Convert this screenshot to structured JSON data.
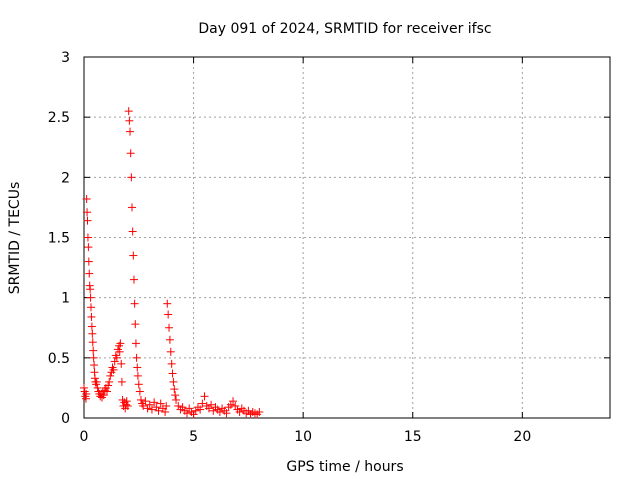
{
  "chart_data": {
    "type": "scatter",
    "title": "Day 091 of 2024, SRMTID for receiver ifsc",
    "xlabel": "GPS time / hours",
    "ylabel": "SRMTID / TECUs",
    "xlim": [
      0,
      24
    ],
    "ylim": [
      0,
      3
    ],
    "xticks": [
      0,
      5,
      10,
      15,
      20
    ],
    "yticks": [
      0,
      0.5,
      1,
      1.5,
      2,
      2.5,
      3
    ],
    "xtick_labels": [
      "0",
      "5",
      "10",
      "15",
      "20"
    ],
    "ytick_labels": [
      "0",
      "0.5",
      "1",
      "1.5",
      "2",
      "2.5",
      "3"
    ],
    "grid": true,
    "marker": "+",
    "color": "#ff0000",
    "series": [
      {
        "name": "SRMTID",
        "points": [
          [
            0.0,
            0.25
          ],
          [
            0.03,
            0.22
          ],
          [
            0.06,
            0.18
          ],
          [
            0.09,
            0.16
          ],
          [
            0.1,
            0.2
          ],
          [
            0.12,
            1.82
          ],
          [
            0.14,
            1.71
          ],
          [
            0.16,
            1.64
          ],
          [
            0.18,
            1.5
          ],
          [
            0.2,
            1.42
          ],
          [
            0.22,
            1.3
          ],
          [
            0.24,
            1.2
          ],
          [
            0.26,
            1.1
          ],
          [
            0.28,
            1.07
          ],
          [
            0.3,
            1.0
          ],
          [
            0.32,
            0.92
          ],
          [
            0.34,
            0.84
          ],
          [
            0.36,
            0.76
          ],
          [
            0.38,
            0.7
          ],
          [
            0.4,
            0.63
          ],
          [
            0.42,
            0.56
          ],
          [
            0.44,
            0.5
          ],
          [
            0.46,
            0.44
          ],
          [
            0.48,
            0.38
          ],
          [
            0.5,
            0.33
          ],
          [
            0.52,
            0.3
          ],
          [
            0.55,
            0.28
          ],
          [
            0.58,
            0.3
          ],
          [
            0.62,
            0.25
          ],
          [
            0.66,
            0.22
          ],
          [
            0.7,
            0.2
          ],
          [
            0.74,
            0.18
          ],
          [
            0.78,
            0.2
          ],
          [
            0.82,
            0.17
          ],
          [
            0.86,
            0.22
          ],
          [
            0.9,
            0.19
          ],
          [
            0.95,
            0.23
          ],
          [
            1.0,
            0.25
          ],
          [
            1.05,
            0.22
          ],
          [
            1.1,
            0.27
          ],
          [
            1.15,
            0.3
          ],
          [
            1.2,
            0.35
          ],
          [
            1.25,
            0.38
          ],
          [
            1.3,
            0.42
          ],
          [
            1.35,
            0.4
          ],
          [
            1.4,
            0.47
          ],
          [
            1.45,
            0.52
          ],
          [
            1.5,
            0.5
          ],
          [
            1.55,
            0.57
          ],
          [
            1.6,
            0.6
          ],
          [
            1.63,
            0.55
          ],
          [
            1.66,
            0.62
          ],
          [
            1.7,
            0.45
          ],
          [
            1.73,
            0.3
          ],
          [
            1.76,
            0.15
          ],
          [
            1.8,
            0.1
          ],
          [
            1.84,
            0.13
          ],
          [
            1.88,
            0.08
          ],
          [
            1.92,
            0.11
          ],
          [
            1.95,
            0.14
          ],
          [
            2.0,
            0.1
          ],
          [
            2.04,
            2.55
          ],
          [
            2.07,
            2.47
          ],
          [
            2.1,
            2.38
          ],
          [
            2.13,
            2.2
          ],
          [
            2.16,
            2.0
          ],
          [
            2.19,
            1.75
          ],
          [
            2.22,
            1.55
          ],
          [
            2.25,
            1.35
          ],
          [
            2.28,
            1.15
          ],
          [
            2.31,
            0.95
          ],
          [
            2.34,
            0.78
          ],
          [
            2.37,
            0.62
          ],
          [
            2.4,
            0.5
          ],
          [
            2.43,
            0.42
          ],
          [
            2.46,
            0.35
          ],
          [
            2.5,
            0.28
          ],
          [
            2.55,
            0.22
          ],
          [
            2.6,
            0.15
          ],
          [
            2.65,
            0.12
          ],
          [
            2.7,
            0.1
          ],
          [
            2.8,
            0.14
          ],
          [
            2.9,
            0.08
          ],
          [
            3.0,
            0.11
          ],
          [
            3.1,
            0.07
          ],
          [
            3.2,
            0.13
          ],
          [
            3.3,
            0.09
          ],
          [
            3.4,
            0.06
          ],
          [
            3.5,
            0.12
          ],
          [
            3.6,
            0.08
          ],
          [
            3.7,
            0.05
          ],
          [
            3.75,
            0.1
          ],
          [
            3.8,
            0.95
          ],
          [
            3.84,
            0.86
          ],
          [
            3.88,
            0.75
          ],
          [
            3.92,
            0.65
          ],
          [
            3.96,
            0.55
          ],
          [
            4.0,
            0.45
          ],
          [
            4.04,
            0.37
          ],
          [
            4.08,
            0.3
          ],
          [
            4.12,
            0.24
          ],
          [
            4.16,
            0.19
          ],
          [
            4.2,
            0.15
          ],
          [
            4.3,
            0.1
          ],
          [
            4.4,
            0.07
          ],
          [
            4.5,
            0.09
          ],
          [
            4.6,
            0.06
          ],
          [
            4.7,
            0.04
          ],
          [
            4.8,
            0.08
          ],
          [
            4.9,
            0.05
          ],
          [
            5.0,
            0.03
          ],
          [
            5.1,
            0.06
          ],
          [
            5.2,
            0.09
          ],
          [
            5.3,
            0.07
          ],
          [
            5.4,
            0.12
          ],
          [
            5.5,
            0.18
          ],
          [
            5.6,
            0.1
          ],
          [
            5.7,
            0.08
          ],
          [
            5.8,
            0.11
          ],
          [
            5.9,
            0.06
          ],
          [
            6.0,
            0.09
          ],
          [
            6.1,
            0.07
          ],
          [
            6.2,
            0.05
          ],
          [
            6.3,
            0.08
          ],
          [
            6.4,
            0.06
          ],
          [
            6.5,
            0.04
          ],
          [
            6.6,
            0.09
          ],
          [
            6.7,
            0.11
          ],
          [
            6.8,
            0.14
          ],
          [
            6.9,
            0.1
          ],
          [
            7.0,
            0.07
          ],
          [
            7.1,
            0.05
          ],
          [
            7.2,
            0.08
          ],
          [
            7.3,
            0.06
          ],
          [
            7.4,
            0.04
          ],
          [
            7.5,
            0.06
          ],
          [
            7.6,
            0.03
          ],
          [
            7.7,
            0.05
          ],
          [
            7.8,
            0.04
          ],
          [
            7.9,
            0.03
          ],
          [
            8.0,
            0.05
          ]
        ]
      }
    ]
  }
}
